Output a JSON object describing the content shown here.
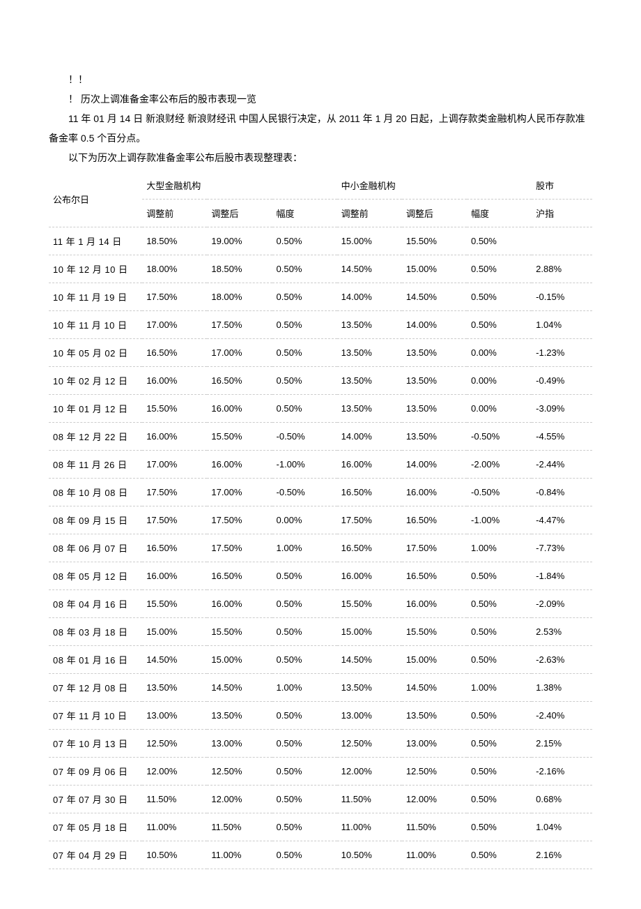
{
  "intro": {
    "l1": "！！",
    "l2": "！ 历次上调准备金率公布后的股市表现一览",
    "l3": "11 年 01 月 14 日   新浪财经    新浪财经讯    中国人民银行决定，从    2011 年 1 月 20 日起，上调存款类金融机构人民币存款准备金率        0.5  个百分点。",
    "l4": "以下为历次上调存款准备金率公布后股市表现整理表："
  },
  "headers": {
    "date": "公布尔日",
    "large": "大型金融机构",
    "small": "中小金融机构",
    "market": "股市",
    "before": "调整前",
    "after": "调整后",
    "range": "幅度",
    "index": "沪指"
  },
  "style": {
    "text_color": "#000000",
    "bg_color": "#ffffff",
    "border_color": "#cccccc",
    "border_style": "dashed",
    "body_fontsize": 14,
    "table_fontsize": 13,
    "row_padding_v": 10,
    "font_family": "Microsoft YaHei, SimSun, Arial, sans-serif"
  },
  "rows": [
    {
      "date": "11 年 1 月 14 日",
      "lb": "18.50%",
      "la": "19.00%",
      "lr": "0.50%",
      "sb": "15.00%",
      "sa": "15.50%",
      "sr": "0.50%",
      "idx": ""
    },
    {
      "date": "10 年 12 月 10 日",
      "lb": "18.00%",
      "la": "18.50%",
      "lr": "0.50%",
      "sb": "14.50%",
      "sa": "15.00%",
      "sr": "0.50%",
      "idx": "2.88%"
    },
    {
      "date": "10 年 11 月 19 日",
      "lb": "17.50%",
      "la": "18.00%",
      "lr": "0.50%",
      "sb": "14.00%",
      "sa": "14.50%",
      "sr": "0.50%",
      "idx": "-0.15%"
    },
    {
      "date": "10 年 11 月 10 日",
      "lb": "17.00%",
      "la": "17.50%",
      "lr": "0.50%",
      "sb": "13.50%",
      "sa": "14.00%",
      "sr": "0.50%",
      "idx": "1.04%"
    },
    {
      "date": "10 年 05 月 02 日",
      "lb": "16.50%",
      "la": "17.00%",
      "lr": "0.50%",
      "sb": "13.50%",
      "sa": "13.50%",
      "sr": "0.00%",
      "idx": "-1.23%"
    },
    {
      "date": "10 年 02 月 12 日",
      "lb": "16.00%",
      "la": "16.50%",
      "lr": "0.50%",
      "sb": "13.50%",
      "sa": "13.50%",
      "sr": "0.00%",
      "idx": "-0.49%"
    },
    {
      "date": "10 年 01 月 12 日",
      "lb": "15.50%",
      "la": "16.00%",
      "lr": "0.50%",
      "sb": "13.50%",
      "sa": "13.50%",
      "sr": "0.00%",
      "idx": "-3.09%"
    },
    {
      "date": "08 年 12 月 22 日",
      "lb": "16.00%",
      "la": "15.50%",
      "lr": "-0.50%",
      "sb": "14.00%",
      "sa": "13.50%",
      "sr": "-0.50%",
      "idx": "-4.55%"
    },
    {
      "date": "08 年 11 月 26 日",
      "lb": "17.00%",
      "la": "16.00%",
      "lr": "-1.00%",
      "sb": "16.00%",
      "sa": "14.00%",
      "sr": "-2.00%",
      "idx": "-2.44%"
    },
    {
      "date": "08 年 10 月 08 日",
      "lb": "17.50%",
      "la": "17.00%",
      "lr": "-0.50%",
      "sb": "16.50%",
      "sa": "16.00%",
      "sr": "-0.50%",
      "idx": "-0.84%"
    },
    {
      "date": "08 年 09 月 15 日",
      "lb": "17.50%",
      "la": "17.50%",
      "lr": "0.00%",
      "sb": "17.50%",
      "sa": "16.50%",
      "sr": "-1.00%",
      "idx": "-4.47%"
    },
    {
      "date": "08 年 06 月 07 日",
      "lb": "16.50%",
      "la": "17.50%",
      "lr": "1.00%",
      "sb": "16.50%",
      "sa": "17.50%",
      "sr": "1.00%",
      "idx": "-7.73%"
    },
    {
      "date": "08 年 05 月 12 日",
      "lb": "16.00%",
      "la": "16.50%",
      "lr": "0.50%",
      "sb": "16.00%",
      "sa": "16.50%",
      "sr": "0.50%",
      "idx": "-1.84%"
    },
    {
      "date": "08 年 04 月 16 日",
      "lb": "15.50%",
      "la": "16.00%",
      "lr": "0.50%",
      "sb": "15.50%",
      "sa": "16.00%",
      "sr": "0.50%",
      "idx": "-2.09%"
    },
    {
      "date": "08 年 03 月 18 日",
      "lb": "15.00%",
      "la": "15.50%",
      "lr": "0.50%",
      "sb": "15.00%",
      "sa": "15.50%",
      "sr": "0.50%",
      "idx": "2.53%"
    },
    {
      "date": "08 年 01 月 16 日",
      "lb": "14.50%",
      "la": "15.00%",
      "lr": "0.50%",
      "sb": "14.50%",
      "sa": "15.00%",
      "sr": "0.50%",
      "idx": "-2.63%"
    },
    {
      "date": "07 年 12 月 08 日",
      "lb": "13.50%",
      "la": "14.50%",
      "lr": "1.00%",
      "sb": "13.50%",
      "sa": "14.50%",
      "sr": "1.00%",
      "idx": "1.38%"
    },
    {
      "date": "07 年 11 月 10 日",
      "lb": "13.00%",
      "la": "13.50%",
      "lr": "0.50%",
      "sb": "13.00%",
      "sa": "13.50%",
      "sr": "0.50%",
      "idx": "-2.40%"
    },
    {
      "date": "07 年 10 月 13 日",
      "lb": "12.50%",
      "la": "13.00%",
      "lr": "0.50%",
      "sb": "12.50%",
      "sa": "13.00%",
      "sr": "0.50%",
      "idx": "2.15%"
    },
    {
      "date": "07 年 09 月 06 日",
      "lb": "12.00%",
      "la": "12.50%",
      "lr": "0.50%",
      "sb": "12.00%",
      "sa": "12.50%",
      "sr": "0.50%",
      "idx": "-2.16%"
    },
    {
      "date": "07 年 07 月 30 日",
      "lb": "11.50%",
      "la": "12.00%",
      "lr": "0.50%",
      "sb": "11.50%",
      "sa": "12.00%",
      "sr": "0.50%",
      "idx": "0.68%"
    },
    {
      "date": "07 年 05 月 18 日",
      "lb": "11.00%",
      "la": "11.50%",
      "lr": "0.50%",
      "sb": "11.00%",
      "sa": "11.50%",
      "sr": "0.50%",
      "idx": "1.04%"
    },
    {
      "date": "07 年 04 月 29 日",
      "lb": "10.50%",
      "la": "11.00%",
      "lr": "0.50%",
      "sb": "10.50%",
      "sa": "11.00%",
      "sr": "0.50%",
      "idx": "2.16%"
    }
  ]
}
